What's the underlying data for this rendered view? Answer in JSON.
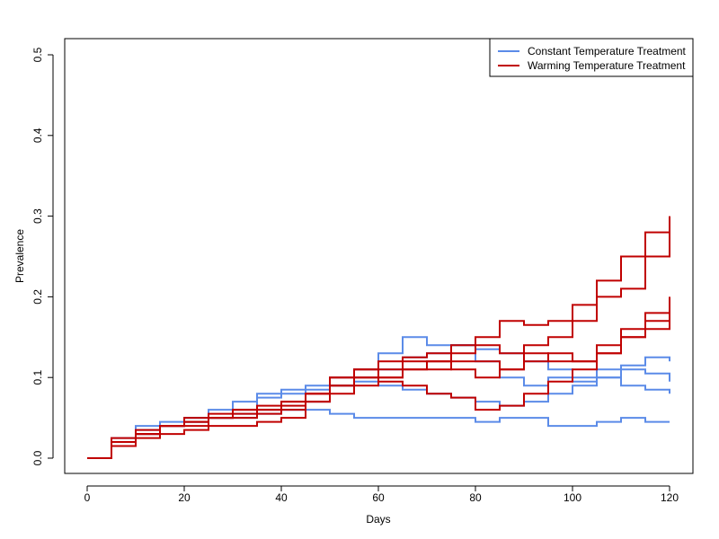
{
  "chart_data": {
    "type": "line",
    "title": "",
    "xlabel": "Days",
    "ylabel": "Prevalence",
    "xlim": [
      0,
      120
    ],
    "ylim": [
      0,
      0.5
    ],
    "x_ticks": [
      0,
      20,
      40,
      60,
      80,
      100,
      120
    ],
    "x_tick_labels": [
      "0",
      "20",
      "40",
      "60",
      "80",
      "100",
      "120"
    ],
    "y_ticks": [
      0,
      0.1,
      0.2,
      0.3,
      0.4,
      0.5
    ],
    "y_tick_labels": [
      "0.0",
      "0.1",
      "0.2",
      "0.3",
      "0.4",
      "0.5"
    ],
    "grid": false,
    "legend_position": "top-right",
    "legend": [
      {
        "label": "Constant Temperature Treatment",
        "color": "#5B8BE8"
      },
      {
        "label": "Warming Temperature Treatment",
        "color": "#C00000"
      }
    ],
    "series": [
      {
        "group": "constant",
        "color": "#5B8BE8",
        "x": [
          0,
          5,
          10,
          15,
          20,
          25,
          30,
          35,
          40,
          45,
          50,
          55,
          60,
          65,
          70,
          75,
          80,
          85,
          90,
          95,
          100,
          105,
          110,
          115,
          120
        ],
        "values": [
          0,
          0.02,
          0.03,
          0.04,
          0.045,
          0.05,
          0.06,
          0.075,
          0.08,
          0.085,
          0.09,
          0.1,
          0.11,
          0.125,
          0.13,
          0.14,
          0.135,
          0.13,
          0.12,
          0.11,
          0.1,
          0.11,
          0.115,
          0.125,
          0.12
        ]
      },
      {
        "group": "constant",
        "color": "#5B8BE8",
        "x": [
          0,
          5,
          10,
          15,
          20,
          25,
          30,
          35,
          40,
          45,
          50,
          55,
          60,
          65,
          70,
          75,
          80,
          85,
          90,
          95,
          100,
          105,
          110,
          115,
          120
        ],
        "values": [
          0,
          0.025,
          0.04,
          0.045,
          0.05,
          0.05,
          0.055,
          0.06,
          0.06,
          0.07,
          0.09,
          0.11,
          0.13,
          0.15,
          0.14,
          0.14,
          0.12,
          0.1,
          0.09,
          0.1,
          0.095,
          0.1,
          0.11,
          0.105,
          0.095
        ]
      },
      {
        "group": "constant",
        "color": "#5B8BE8",
        "x": [
          0,
          5,
          10,
          15,
          20,
          25,
          30,
          35,
          40,
          45,
          50,
          55,
          60,
          65,
          70,
          75,
          80,
          85,
          90,
          95,
          100,
          105,
          110,
          115,
          120
        ],
        "values": [
          0,
          0.02,
          0.035,
          0.04,
          0.05,
          0.06,
          0.07,
          0.08,
          0.085,
          0.09,
          0.1,
          0.095,
          0.09,
          0.085,
          0.08,
          0.075,
          0.07,
          0.065,
          0.07,
          0.08,
          0.09,
          0.1,
          0.09,
          0.085,
          0.08
        ]
      },
      {
        "group": "constant",
        "color": "#5B8BE8",
        "x": [
          0,
          5,
          10,
          15,
          20,
          25,
          30,
          35,
          40,
          45,
          50,
          55,
          60,
          65,
          70,
          75,
          80,
          85,
          90,
          95,
          100,
          105,
          110,
          115,
          120
        ],
        "values": [
          0,
          0.015,
          0.03,
          0.04,
          0.045,
          0.05,
          0.05,
          0.055,
          0.06,
          0.06,
          0.055,
          0.05,
          0.05,
          0.05,
          0.05,
          0.05,
          0.045,
          0.05,
          0.05,
          0.04,
          0.04,
          0.045,
          0.05,
          0.045,
          0.045
        ]
      },
      {
        "group": "warming",
        "color": "#C00000",
        "x": [
          0,
          5,
          10,
          15,
          20,
          25,
          30,
          35,
          40,
          45,
          50,
          55,
          60,
          65,
          70,
          75,
          80,
          85,
          90,
          95,
          100,
          105,
          110,
          115,
          120
        ],
        "values": [
          0,
          0.02,
          0.03,
          0.04,
          0.04,
          0.05,
          0.06,
          0.06,
          0.065,
          0.08,
          0.1,
          0.11,
          0.12,
          0.125,
          0.13,
          0.14,
          0.15,
          0.17,
          0.165,
          0.17,
          0.19,
          0.22,
          0.25,
          0.28,
          0.3
        ]
      },
      {
        "group": "warming",
        "color": "#C00000",
        "x": [
          0,
          5,
          10,
          15,
          20,
          25,
          30,
          35,
          40,
          45,
          50,
          55,
          60,
          65,
          70,
          75,
          80,
          85,
          90,
          95,
          100,
          105,
          110,
          115,
          120
        ],
        "values": [
          0,
          0.025,
          0.035,
          0.04,
          0.045,
          0.05,
          0.055,
          0.06,
          0.07,
          0.08,
          0.1,
          0.11,
          0.1,
          0.11,
          0.12,
          0.13,
          0.14,
          0.13,
          0.14,
          0.15,
          0.17,
          0.2,
          0.21,
          0.25,
          0.28
        ]
      },
      {
        "group": "warming",
        "color": "#C00000",
        "x": [
          0,
          5,
          10,
          15,
          20,
          25,
          30,
          35,
          40,
          45,
          50,
          55,
          60,
          65,
          70,
          75,
          80,
          85,
          90,
          95,
          100,
          105,
          110,
          115,
          120
        ],
        "values": [
          0,
          0.02,
          0.03,
          0.04,
          0.05,
          0.055,
          0.06,
          0.065,
          0.07,
          0.08,
          0.09,
          0.1,
          0.11,
          0.12,
          0.12,
          0.11,
          0.1,
          0.11,
          0.12,
          0.13,
          0.12,
          0.14,
          0.16,
          0.18,
          0.2
        ]
      },
      {
        "group": "warming",
        "color": "#C00000",
        "x": [
          0,
          5,
          10,
          15,
          20,
          25,
          30,
          35,
          40,
          45,
          50,
          55,
          60,
          65,
          70,
          75,
          80,
          85,
          90,
          95,
          100,
          105,
          110,
          115,
          120
        ],
        "values": [
          0,
          0.015,
          0.025,
          0.03,
          0.035,
          0.04,
          0.04,
          0.045,
          0.05,
          0.07,
          0.09,
          0.1,
          0.095,
          0.09,
          0.08,
          0.075,
          0.06,
          0.065,
          0.08,
          0.095,
          0.11,
          0.13,
          0.15,
          0.16,
          0.175
        ]
      },
      {
        "group": "warming",
        "color": "#C00000",
        "x": [
          0,
          5,
          10,
          15,
          20,
          25,
          30,
          35,
          40,
          45,
          50,
          55,
          60,
          65,
          70,
          75,
          80,
          85,
          90,
          95,
          100,
          105,
          110,
          115,
          120
        ],
        "values": [
          0,
          0.02,
          0.03,
          0.04,
          0.045,
          0.05,
          0.05,
          0.055,
          0.06,
          0.07,
          0.08,
          0.09,
          0.1,
          0.11,
          0.11,
          0.12,
          0.12,
          0.11,
          0.13,
          0.12,
          0.12,
          0.13,
          0.15,
          0.17,
          0.18
        ]
      }
    ]
  }
}
